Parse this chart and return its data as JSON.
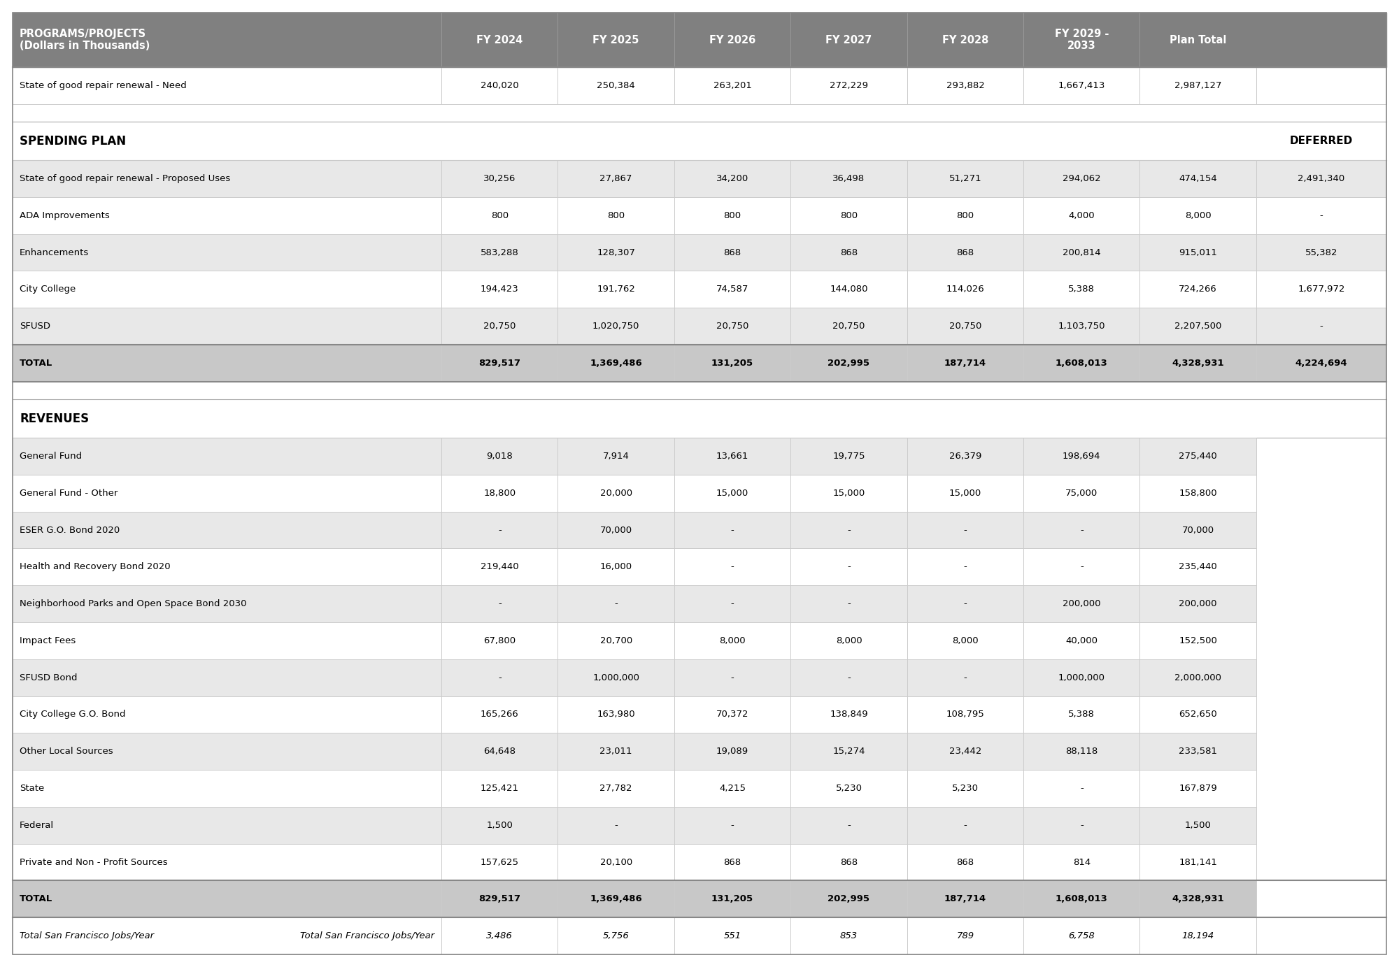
{
  "header_bg": "#808080",
  "header_text_color": "#FFFFFF",
  "col_headers": [
    "PROGRAMS/PROJECTS\n(Dollars in Thousands)",
    "FY 2024",
    "FY 2025",
    "FY 2026",
    "FY 2027",
    "FY 2028",
    "FY 2029 -\n2033",
    "Plan Total"
  ],
  "need_row": {
    "label": "State of good repair renewal - Need",
    "values": [
      "240,020",
      "250,384",
      "263,201",
      "272,229",
      "293,882",
      "1,667,413",
      "2,987,127",
      ""
    ],
    "bg": "#FFFFFF"
  },
  "spending_rows": [
    {
      "label": "State of good repair renewal - Proposed Uses",
      "values": [
        "30,256",
        "27,867",
        "34,200",
        "36,498",
        "51,271",
        "294,062",
        "474,154",
        "2,491,340"
      ],
      "bg": "#E8E8E8"
    },
    {
      "label": "ADA Improvements",
      "values": [
        "800",
        "800",
        "800",
        "800",
        "800",
        "4,000",
        "8,000",
        "-"
      ],
      "bg": "#FFFFFF"
    },
    {
      "label": "Enhancements",
      "values": [
        "583,288",
        "128,307",
        "868",
        "868",
        "868",
        "200,814",
        "915,011",
        "55,382"
      ],
      "bg": "#E8E8E8"
    },
    {
      "label": "City College",
      "values": [
        "194,423",
        "191,762",
        "74,587",
        "144,080",
        "114,026",
        "5,388",
        "724,266",
        "1,677,972"
      ],
      "bg": "#FFFFFF"
    },
    {
      "label": "SFUSD",
      "values": [
        "20,750",
        "1,020,750",
        "20,750",
        "20,750",
        "20,750",
        "1,103,750",
        "2,207,500",
        "-"
      ],
      "bg": "#E8E8E8"
    }
  ],
  "spending_total": {
    "label": "TOTAL",
    "values": [
      "829,517",
      "1,369,486",
      "131,205",
      "202,995",
      "187,714",
      "1,608,013",
      "4,328,931",
      "4,224,694"
    ],
    "bg": "#C8C8C8"
  },
  "revenue_rows": [
    {
      "label": "General Fund",
      "values": [
        "9,018",
        "7,914",
        "13,661",
        "19,775",
        "26,379",
        "198,694",
        "275,440",
        ""
      ],
      "bg": "#E8E8E8"
    },
    {
      "label": "General Fund - Other",
      "values": [
        "18,800",
        "20,000",
        "15,000",
        "15,000",
        "15,000",
        "75,000",
        "158,800",
        ""
      ],
      "bg": "#FFFFFF"
    },
    {
      "label": "ESER G.O. Bond 2020",
      "values": [
        "-",
        "70,000",
        "-",
        "-",
        "-",
        "-",
        "70,000",
        ""
      ],
      "bg": "#E8E8E8"
    },
    {
      "label": "Health and Recovery Bond 2020",
      "values": [
        "219,440",
        "16,000",
        "-",
        "-",
        "-",
        "-",
        "235,440",
        ""
      ],
      "bg": "#FFFFFF"
    },
    {
      "label": "Neighborhood Parks and Open Space Bond 2030",
      "values": [
        "-",
        "-",
        "-",
        "-",
        "-",
        "200,000",
        "200,000",
        ""
      ],
      "bg": "#E8E8E8"
    },
    {
      "label": "Impact Fees",
      "values": [
        "67,800",
        "20,700",
        "8,000",
        "8,000",
        "8,000",
        "40,000",
        "152,500",
        ""
      ],
      "bg": "#FFFFFF"
    },
    {
      "label": "SFUSD Bond",
      "values": [
        "-",
        "1,000,000",
        "-",
        "-",
        "-",
        "1,000,000",
        "2,000,000",
        ""
      ],
      "bg": "#E8E8E8"
    },
    {
      "label": "City College G.O. Bond",
      "values": [
        "165,266",
        "163,980",
        "70,372",
        "138,849",
        "108,795",
        "5,388",
        "652,650",
        ""
      ],
      "bg": "#FFFFFF"
    },
    {
      "label": "Other Local Sources",
      "values": [
        "64,648",
        "23,011",
        "19,089",
        "15,274",
        "23,442",
        "88,118",
        "233,581",
        ""
      ],
      "bg": "#E8E8E8"
    },
    {
      "label": "State",
      "values": [
        "125,421",
        "27,782",
        "4,215",
        "5,230",
        "5,230",
        "-",
        "167,879",
        ""
      ],
      "bg": "#FFFFFF"
    },
    {
      "label": "Federal",
      "values": [
        "1,500",
        "-",
        "-",
        "-",
        "-",
        "-",
        "1,500",
        ""
      ],
      "bg": "#E8E8E8"
    },
    {
      "label": "Private and Non - Profit Sources",
      "values": [
        "157,625",
        "20,100",
        "868",
        "868",
        "868",
        "814",
        "181,141",
        ""
      ],
      "bg": "#FFFFFF"
    }
  ],
  "revenue_total": {
    "label": "TOTAL",
    "values": [
      "829,517",
      "1,369,486",
      "131,205",
      "202,995",
      "187,714",
      "1,608,013",
      "4,328,931",
      ""
    ],
    "bg": "#C8C8C8"
  },
  "jobs_row": {
    "label": "Total San Francisco Jobs/Year",
    "values": [
      "3,486",
      "5,756",
      "551",
      "853",
      "789",
      "6,758",
      "18,194",
      ""
    ],
    "bg": "#FFFFFF"
  },
  "border_color": "#AAAAAA",
  "divider_color": "#CCCCCC",
  "outer_border_color": "#888888"
}
